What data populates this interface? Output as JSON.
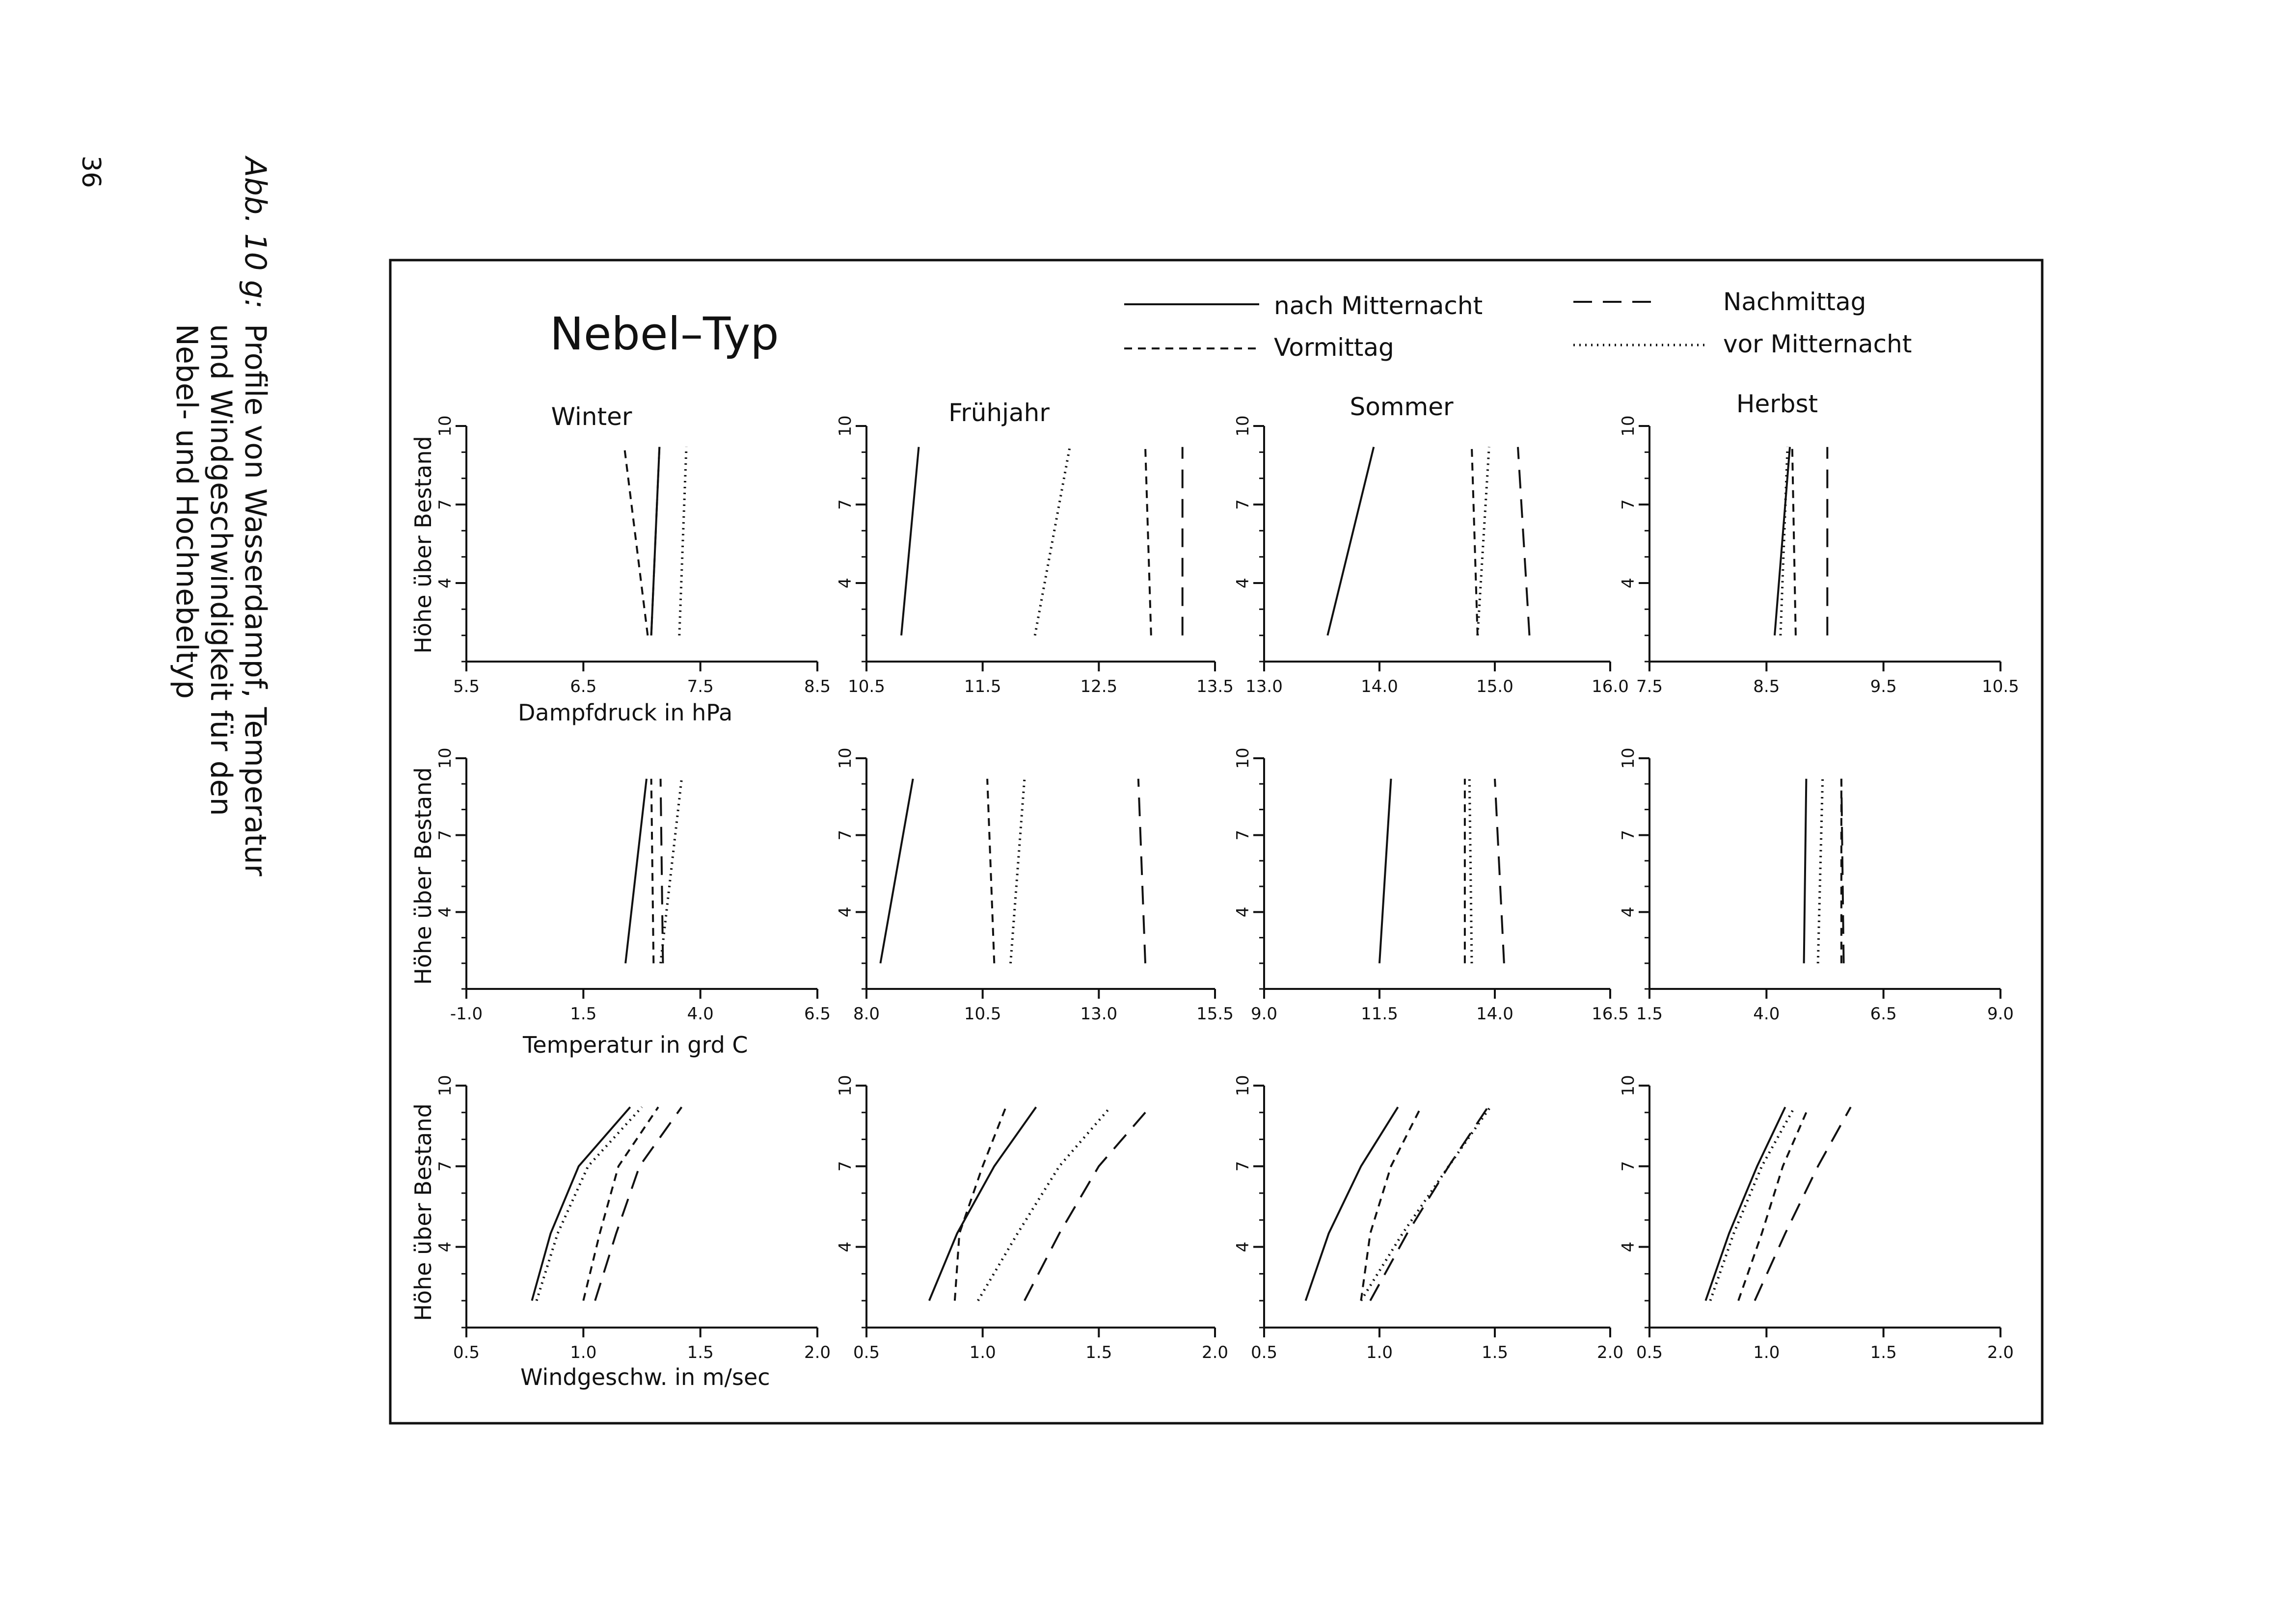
{
  "page_number": "36",
  "caption": {
    "label": "Abb. 10 g:",
    "line1": "Profile von Wasserdampf, Temperatur",
    "line2": "und  Windgeschwindigkeit  für  den",
    "line3": "Nebel- und Hochnebeltyp"
  },
  "figure_title": "Nebel–Typ",
  "legend": [
    {
      "label": "nach Mitternacht",
      "style": "solid"
    },
    {
      "label": "Nachmittag",
      "style": "longdash"
    },
    {
      "label": "Vormittag",
      "style": "dashed"
    },
    {
      "label": "vor Mitternacht",
      "style": "dotted"
    }
  ],
  "season_titles": [
    "Winter",
    "Frühjahr",
    "Sommer",
    "Herbst"
  ],
  "row_ylabel": "Höhe über Bestand",
  "row_xlabels": [
    "Dampfdruck in hPa",
    "Temperatur in grd C",
    "Windgeschw. in m/sec"
  ],
  "chart_data": [
    {
      "type": "line",
      "title": "Winter",
      "xlabel": "Dampfdruck in hPa",
      "ylabel": "Höhe über Bestand",
      "xlim": [
        5.5,
        8.5
      ],
      "ylim": [
        1,
        10
      ],
      "xticks": [
        "5.5",
        "6.5",
        "7.5",
        "8.5"
      ],
      "yticks": [
        "4",
        "7",
        "10"
      ],
      "series": [
        {
          "name": "nach Mitternacht",
          "points": [
            [
              7.08,
              2.0
            ],
            [
              7.15,
              9.2
            ]
          ]
        },
        {
          "name": "Vormittag",
          "points": [
            [
              7.05,
              2.0
            ],
            [
              6.85,
              9.2
            ]
          ]
        },
        {
          "name": "Nachmittag",
          "points": [
            [
              7.08,
              2.0
            ],
            [
              7.15,
              9.2
            ]
          ]
        },
        {
          "name": "vor Mitternacht",
          "points": [
            [
              7.32,
              2.0
            ],
            [
              7.38,
              9.2
            ]
          ]
        }
      ]
    },
    {
      "type": "line",
      "title": "Frühjahr",
      "xlabel": "",
      "ylabel": "",
      "xlim": [
        10.5,
        13.5
      ],
      "ylim": [
        1,
        10
      ],
      "xticks": [
        "10.5",
        "11.5",
        "12.5",
        "13.5"
      ],
      "yticks": [
        "4",
        "7",
        "10"
      ],
      "series": [
        {
          "name": "nach Mitternacht",
          "points": [
            [
              10.8,
              2.0
            ],
            [
              10.95,
              9.2
            ]
          ]
        },
        {
          "name": "Vormittag",
          "points": [
            [
              12.95,
              2.0
            ],
            [
              12.9,
              9.2
            ]
          ]
        },
        {
          "name": "Nachmittag",
          "points": [
            [
              13.22,
              2.0
            ],
            [
              13.22,
              9.2
            ]
          ]
        },
        {
          "name": "vor Mitternacht",
          "points": [
            [
              11.95,
              2.0
            ],
            [
              12.25,
              9.2
            ]
          ]
        }
      ]
    },
    {
      "type": "line",
      "title": "Sommer",
      "xlabel": "",
      "ylabel": "",
      "xlim": [
        13.0,
        16.0
      ],
      "ylim": [
        1,
        10
      ],
      "xticks": [
        "13.0",
        "14.0",
        "15.0",
        "16.0"
      ],
      "yticks": [
        "4",
        "7",
        "10"
      ],
      "series": [
        {
          "name": "nach Mitternacht",
          "points": [
            [
              13.55,
              2.0
            ],
            [
              13.95,
              9.2
            ]
          ]
        },
        {
          "name": "Vormittag",
          "points": [
            [
              14.85,
              2.0
            ],
            [
              14.8,
              9.2
            ]
          ]
        },
        {
          "name": "Nachmittag",
          "points": [
            [
              15.3,
              2.0
            ],
            [
              15.2,
              9.2
            ]
          ]
        },
        {
          "name": "vor Mitternacht",
          "points": [
            [
              14.85,
              2.0
            ],
            [
              14.95,
              9.2
            ]
          ]
        }
      ]
    },
    {
      "type": "line",
      "title": "Herbst",
      "xlabel": "",
      "ylabel": "",
      "xlim": [
        7.5,
        10.5
      ],
      "ylim": [
        1,
        10
      ],
      "xticks": [
        "7.5",
        "8.5",
        "9.5",
        "10.5"
      ],
      "yticks": [
        "4",
        "7",
        "10"
      ],
      "series": [
        {
          "name": "nach Mitternacht",
          "points": [
            [
              8.57,
              2.0
            ],
            [
              8.7,
              9.2
            ]
          ]
        },
        {
          "name": "Vormittag",
          "points": [
            [
              8.75,
              2.0
            ],
            [
              8.72,
              9.2
            ]
          ]
        },
        {
          "name": "Nachmittag",
          "points": [
            [
              9.02,
              2.0
            ],
            [
              9.02,
              9.2
            ]
          ]
        },
        {
          "name": "vor Mitternacht",
          "points": [
            [
              8.62,
              2.0
            ],
            [
              8.68,
              9.2
            ]
          ]
        }
      ]
    },
    {
      "type": "line",
      "title": "",
      "xlabel": "Temperatur in grd C",
      "ylabel": "Höhe über Bestand",
      "xlim": [
        -1.0,
        6.5
      ],
      "ylim": [
        1,
        10
      ],
      "xticks": [
        "-1.0",
        "1.5",
        "4.0",
        "6.5"
      ],
      "yticks": [
        "4",
        "7",
        "10"
      ],
      "series": [
        {
          "name": "nach Mitternacht",
          "points": [
            [
              2.4,
              2.0
            ],
            [
              2.85,
              9.2
            ]
          ]
        },
        {
          "name": "Vormittag",
          "points": [
            [
              3.0,
              2.0
            ],
            [
              2.95,
              9.2
            ]
          ]
        },
        {
          "name": "Nachmittag",
          "points": [
            [
              3.2,
              2.0
            ],
            [
              3.15,
              9.2
            ]
          ]
        },
        {
          "name": "vor Mitternacht",
          "points": [
            [
              3.15,
              2.0
            ],
            [
              3.6,
              9.2
            ]
          ]
        }
      ]
    },
    {
      "type": "line",
      "title": "",
      "xlabel": "",
      "ylabel": "",
      "xlim": [
        8.0,
        15.5
      ],
      "ylim": [
        1,
        10
      ],
      "xticks": [
        "8.0",
        "10.5",
        "13.0",
        "15.5"
      ],
      "yticks": [
        "4",
        "7",
        "10"
      ],
      "series": [
        {
          "name": "nach Mitternacht",
          "points": [
            [
              8.3,
              2.0
            ],
            [
              9.0,
              9.2
            ]
          ]
        },
        {
          "name": "Vormittag",
          "points": [
            [
              10.75,
              2.0
            ],
            [
              10.6,
              9.2
            ]
          ]
        },
        {
          "name": "Nachmittag",
          "points": [
            [
              14.0,
              2.0
            ],
            [
              13.85,
              9.2
            ]
          ]
        },
        {
          "name": "vor Mitternacht",
          "points": [
            [
              11.1,
              2.0
            ],
            [
              11.4,
              9.2
            ]
          ]
        }
      ]
    },
    {
      "type": "line",
      "title": "",
      "xlabel": "",
      "ylabel": "",
      "xlim": [
        9.0,
        16.5
      ],
      "ylim": [
        1,
        10
      ],
      "xticks": [
        "9.0",
        "11.5",
        "14.0",
        "16.5"
      ],
      "yticks": [
        "4",
        "7",
        "10"
      ],
      "series": [
        {
          "name": "nach Mitternacht",
          "points": [
            [
              11.5,
              2.0
            ],
            [
              11.75,
              9.2
            ]
          ]
        },
        {
          "name": "Vormittag",
          "points": [
            [
              13.35,
              2.0
            ],
            [
              13.35,
              9.2
            ]
          ]
        },
        {
          "name": "Nachmittag",
          "points": [
            [
              14.2,
              2.0
            ],
            [
              14.0,
              9.2
            ]
          ]
        },
        {
          "name": "vor Mitternacht",
          "points": [
            [
              13.5,
              2.0
            ],
            [
              13.45,
              9.2
            ]
          ]
        }
      ]
    },
    {
      "type": "line",
      "title": "",
      "xlabel": "",
      "ylabel": "",
      "xlim": [
        1.5,
        9.0
      ],
      "ylim": [
        1,
        10
      ],
      "xticks": [
        "1.5",
        "4.0",
        "6.5",
        "9.0"
      ],
      "yticks": [
        "4",
        "7",
        "10"
      ],
      "series": [
        {
          "name": "nach Mitternacht",
          "points": [
            [
              4.8,
              2.0
            ],
            [
              4.85,
              9.2
            ]
          ]
        },
        {
          "name": "Vormittag",
          "points": [
            [
              5.6,
              2.0
            ],
            [
              5.6,
              9.2
            ]
          ]
        },
        {
          "name": "Nachmittag",
          "points": [
            [
              5.65,
              2.0
            ],
            [
              5.6,
              9.2
            ]
          ]
        },
        {
          "name": "vor Mitternacht",
          "points": [
            [
              5.1,
              2.0
            ],
            [
              5.2,
              9.2
            ]
          ]
        }
      ]
    },
    {
      "type": "line",
      "title": "",
      "xlabel": "Windgeschw. in m/sec",
      "ylabel": "Höhe über Bestand",
      "xlim": [
        0.5,
        2.0
      ],
      "ylim": [
        1,
        10
      ],
      "xticks": [
        "0.5",
        "1.0",
        "1.5",
        "2.0"
      ],
      "yticks": [
        "4",
        "7",
        "10"
      ],
      "series": [
        {
          "name": "nach Mitternacht",
          "points": [
            [
              0.78,
              2.0
            ],
            [
              0.86,
              4.5
            ],
            [
              0.98,
              7.0
            ],
            [
              1.2,
              9.2
            ]
          ]
        },
        {
          "name": "Vormittag",
          "points": [
            [
              1.0,
              2.0
            ],
            [
              1.07,
              4.5
            ],
            [
              1.15,
              7.0
            ],
            [
              1.32,
              9.2
            ]
          ]
        },
        {
          "name": "Nachmittag",
          "points": [
            [
              1.05,
              2.0
            ],
            [
              1.14,
              4.5
            ],
            [
              1.24,
              7.0
            ],
            [
              1.42,
              9.2
            ]
          ]
        },
        {
          "name": "vor Mitternacht",
          "points": [
            [
              0.8,
              2.0
            ],
            [
              0.89,
              4.5
            ],
            [
              1.02,
              7.0
            ],
            [
              1.25,
              9.2
            ]
          ]
        }
      ]
    },
    {
      "type": "line",
      "title": "",
      "xlabel": "",
      "ylabel": "",
      "xlim": [
        0.5,
        2.0
      ],
      "ylim": [
        1,
        10
      ],
      "xticks": [
        "0.5",
        "1.0",
        "1.5",
        "2.0"
      ],
      "yticks": [
        "4",
        "7",
        "10"
      ],
      "series": [
        {
          "name": "nach Mitternacht",
          "points": [
            [
              0.77,
              2.0
            ],
            [
              0.89,
              4.5
            ],
            [
              1.05,
              7.0
            ],
            [
              1.23,
              9.2
            ]
          ]
        },
        {
          "name": "Vormittag",
          "points": [
            [
              0.88,
              2.0
            ],
            [
              0.9,
              4.5
            ],
            [
              1.0,
              7.0
            ],
            [
              1.1,
              9.2
            ]
          ]
        },
        {
          "name": "Nachmittag",
          "points": [
            [
              1.18,
              2.0
            ],
            [
              1.33,
              4.5
            ],
            [
              1.5,
              7.0
            ],
            [
              1.72,
              9.2
            ]
          ]
        },
        {
          "name": "vor Mitternacht",
          "points": [
            [
              0.98,
              2.0
            ],
            [
              1.15,
              4.5
            ],
            [
              1.33,
              7.0
            ],
            [
              1.55,
              9.2
            ]
          ]
        }
      ]
    },
    {
      "type": "line",
      "title": "",
      "xlabel": "",
      "ylabel": "",
      "xlim": [
        0.5,
        2.0
      ],
      "ylim": [
        1,
        10
      ],
      "xticks": [
        "0.5",
        "1.0",
        "1.5",
        "2.0"
      ],
      "yticks": [
        "4",
        "7",
        "10"
      ],
      "series": [
        {
          "name": "nach Mitternacht",
          "points": [
            [
              0.68,
              2.0
            ],
            [
              0.78,
              4.5
            ],
            [
              0.92,
              7.0
            ],
            [
              1.08,
              9.2
            ]
          ]
        },
        {
          "name": "Vormittag",
          "points": [
            [
              0.92,
              2.0
            ],
            [
              0.96,
              4.5
            ],
            [
              1.05,
              7.0
            ],
            [
              1.18,
              9.2
            ]
          ]
        },
        {
          "name": "Nachmittag",
          "points": [
            [
              0.96,
              2.0
            ],
            [
              1.12,
              4.5
            ],
            [
              1.3,
              7.0
            ],
            [
              1.47,
              9.2
            ]
          ]
        },
        {
          "name": "vor Mitternacht",
          "points": [
            [
              0.92,
              2.0
            ],
            [
              1.1,
              4.5
            ],
            [
              1.3,
              7.0
            ],
            [
              1.48,
              9.2
            ]
          ]
        }
      ]
    },
    {
      "type": "line",
      "title": "",
      "xlabel": "",
      "ylabel": "",
      "xlim": [
        0.5,
        2.0
      ],
      "ylim": [
        1,
        10
      ],
      "xticks": [
        "0.5",
        "1.0",
        "1.5",
        "2.0"
      ],
      "yticks": [
        "4",
        "7",
        "10"
      ],
      "series": [
        {
          "name": "nach Mitternacht",
          "points": [
            [
              0.74,
              2.0
            ],
            [
              0.84,
              4.5
            ],
            [
              0.96,
              7.0
            ],
            [
              1.08,
              9.2
            ]
          ]
        },
        {
          "name": "Vormittag",
          "points": [
            [
              0.88,
              2.0
            ],
            [
              0.98,
              4.5
            ],
            [
              1.07,
              7.0
            ],
            [
              1.18,
              9.2
            ]
          ]
        },
        {
          "name": "Nachmittag",
          "points": [
            [
              0.95,
              2.0
            ],
            [
              1.08,
              4.5
            ],
            [
              1.22,
              7.0
            ],
            [
              1.36,
              9.2
            ]
          ]
        },
        {
          "name": "vor Mitternacht",
          "points": [
            [
              0.76,
              2.0
            ],
            [
              0.86,
              4.5
            ],
            [
              0.98,
              7.0
            ],
            [
              1.12,
              9.2
            ]
          ]
        }
      ]
    }
  ]
}
